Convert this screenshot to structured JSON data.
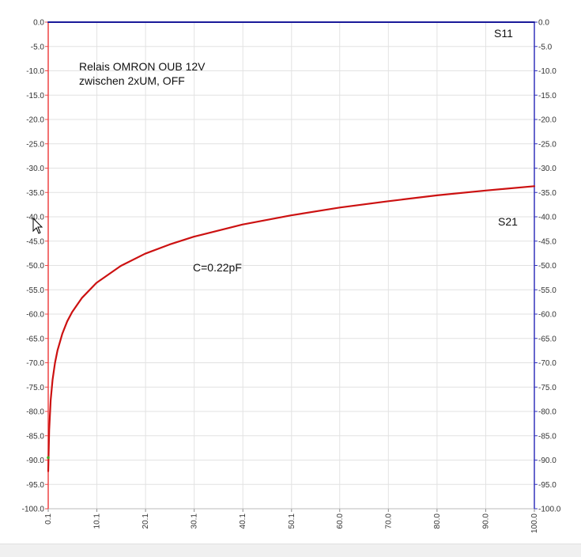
{
  "chart_data": {
    "type": "line",
    "title": "",
    "xlabel": "",
    "ylabel": "",
    "xlim": [
      0.1,
      100.0
    ],
    "ylim": [
      -100.0,
      0.0
    ],
    "x_ticks": [
      "0.1",
      "10.1",
      "20.1",
      "30.1",
      "40.1",
      "50.1",
      "60.0",
      "70.0",
      "80.0",
      "90.0",
      "100.0"
    ],
    "y_ticks_left": [
      "0.0",
      "-5.0",
      "-10.0",
      "-15.0",
      "-20.0",
      "-25.0",
      "-30.0",
      "-35.0",
      "-40.0",
      "-45.0",
      "-50.0",
      "-55.0",
      "-60.0",
      "-65.0",
      "-70.0",
      "-75.0",
      "-80.0",
      "-85.0",
      "-90.0",
      "-95.0",
      "-100.0"
    ],
    "y_ticks_right": [
      "0.0",
      "-5.0",
      "-10.0",
      "-15.0",
      "-20.0",
      "-25.0",
      "-30.0",
      "-35.0",
      "-40.0",
      "-45.0",
      "-50.0",
      "-55.0",
      "-60.0",
      "-65.0",
      "-70.0",
      "-75.0",
      "-80.0",
      "-85.0",
      "-90.0",
      "-95.0",
      "-100.0"
    ],
    "grid": true,
    "annotations": [
      "Relais OMRON OUB 12V",
      "zwischen 2xUM, OFF",
      "C=0.22pF"
    ],
    "series": [
      {
        "name": "S21",
        "color": "#cc1111",
        "x": [
          0.1,
          0.3,
          0.6,
          1.0,
          1.5,
          2.0,
          3.0,
          4.0,
          5.0,
          7.0,
          10.0,
          15.0,
          20.0,
          25.0,
          30.0,
          40.0,
          50.0,
          60.0,
          70.0,
          80.0,
          90.0,
          100.0
        ],
        "y": [
          -92.3,
          -83.9,
          -77.7,
          -73.5,
          -70.0,
          -67.5,
          -64.0,
          -61.5,
          -59.6,
          -56.7,
          -53.6,
          -50.1,
          -47.6,
          -45.7,
          -44.1,
          -41.6,
          -39.7,
          -38.1,
          -36.8,
          -35.6,
          -34.6,
          -33.7
        ]
      },
      {
        "name": "S11",
        "color": "#1a1a99",
        "x": [
          0.1,
          100.0
        ],
        "y": [
          0.0,
          0.0
        ]
      }
    ],
    "axis_colors": {
      "left": "#ee4444",
      "right": "#3333bb",
      "grid": "#e2e2e2"
    }
  }
}
